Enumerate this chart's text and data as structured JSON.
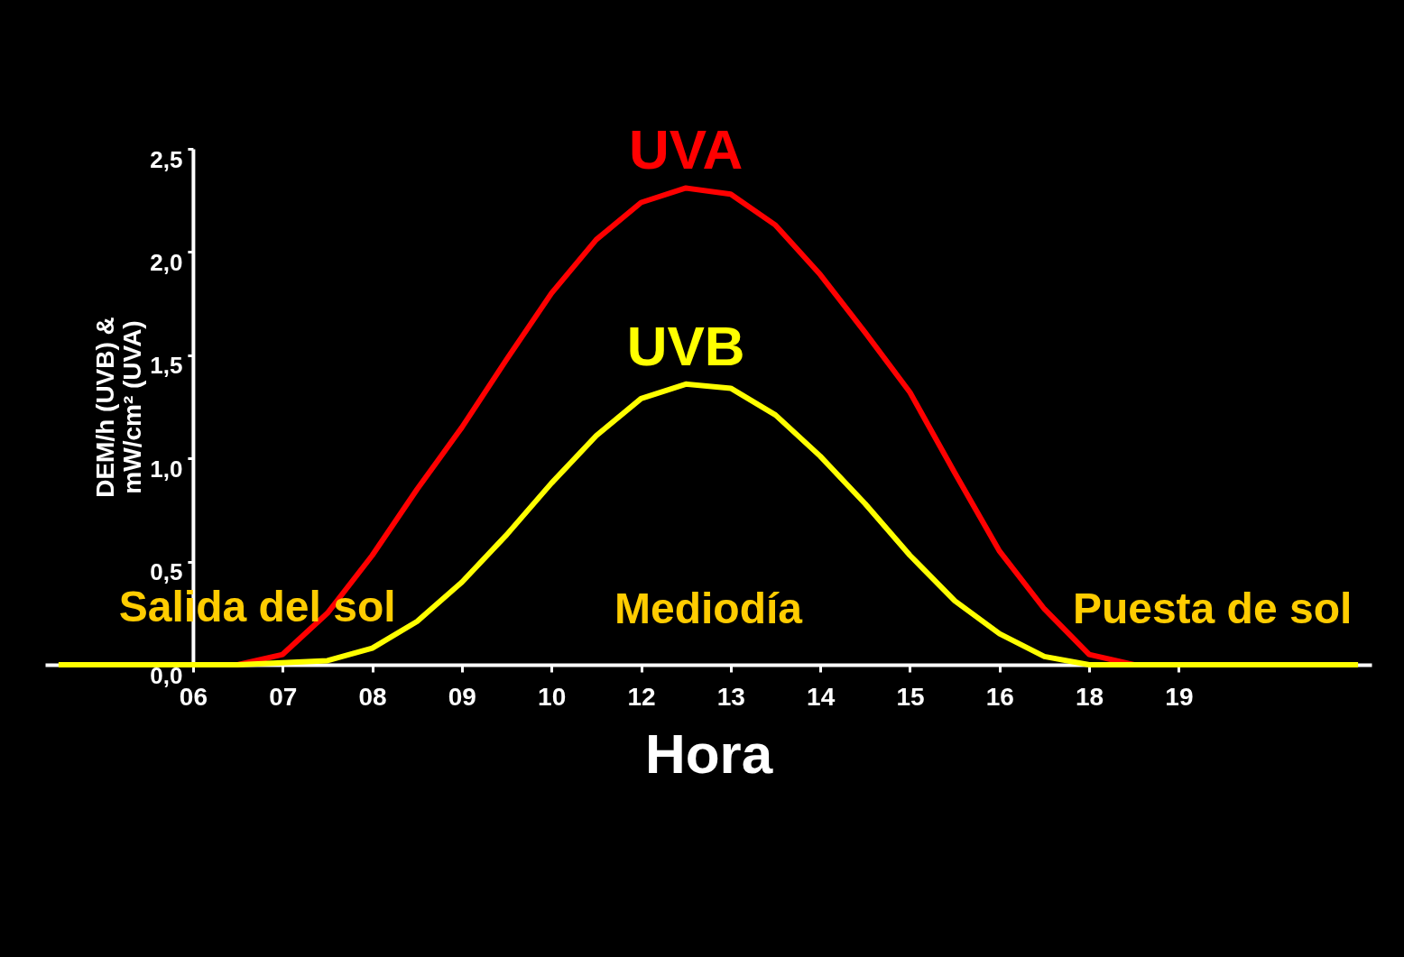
{
  "chart_data": {
    "type": "line",
    "xlabel": "Hora",
    "ylabel": "DEM/h (UVB) &\nmW/cm² (UVA)",
    "categories": [
      null,
      null,
      null,
      "06",
      null,
      "07",
      null,
      "08",
      null,
      "09",
      null,
      "10",
      null,
      "12",
      null,
      "13",
      null,
      "14",
      null,
      "15",
      null,
      "16",
      null,
      "18",
      null,
      "19",
      null,
      null,
      null,
      null
    ],
    "series": [
      {
        "name": "UVA",
        "color": "#ff0000",
        "values": [
          null,
          null,
          null,
          0,
          0,
          0.05,
          0.25,
          0.53,
          0.85,
          1.15,
          1.48,
          1.8,
          2.06,
          2.24,
          2.31,
          2.28,
          2.13,
          1.89,
          1.61,
          1.32,
          0.93,
          0.55,
          0.27,
          0.05,
          0,
          0,
          null,
          null,
          null,
          null
        ]
      },
      {
        "name": "UVB",
        "color": "#ffff00",
        "values": [
          0,
          0,
          0,
          0,
          0,
          0.01,
          0.02,
          0.08,
          0.21,
          0.4,
          0.63,
          0.88,
          1.11,
          1.29,
          1.36,
          1.34,
          1.21,
          1.01,
          0.78,
          0.53,
          0.31,
          0.15,
          0.04,
          0,
          0,
          0,
          0,
          0,
          0,
          0
        ]
      }
    ],
    "annotations": [
      "Salida del sol",
      "Mediodía",
      "Puesta de sol"
    ],
    "ylim": [
      0,
      2.5
    ],
    "yticks": [
      {
        "value": 0,
        "label": "0,0"
      },
      {
        "value": 0.5,
        "label": "0,5"
      },
      {
        "value": 1,
        "label": "1,0"
      },
      {
        "value": 1.5,
        "label": "1,5"
      },
      {
        "value": 2,
        "label": "2,0"
      },
      {
        "value": 2.5,
        "label": "2,5"
      }
    ],
    "grid": false,
    "marker": "none",
    "line_style": "solid"
  }
}
